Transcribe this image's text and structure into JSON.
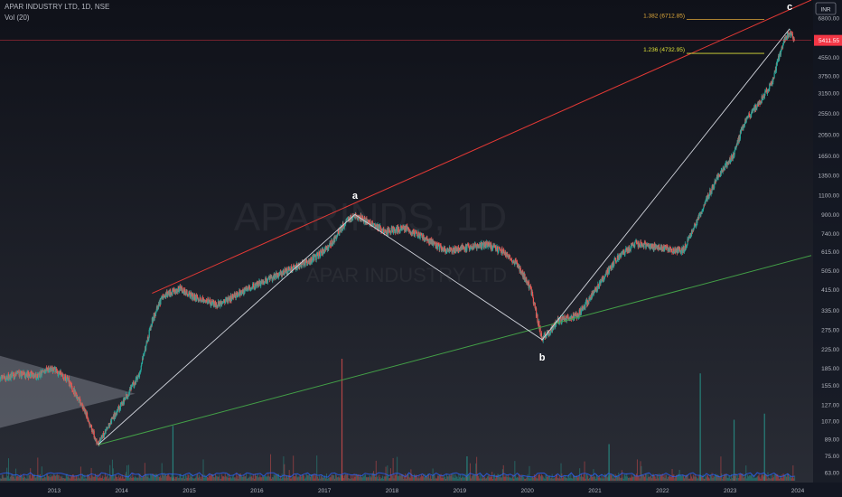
{
  "header": {
    "symbol_line": "APAR INDUSTRY LTD, 1D, NSE",
    "volume_indicator": "Vol (20)"
  },
  "watermark": {
    "ticker": "APARINDS, 1D",
    "company": "APAR INDUSTRY LTD"
  },
  "currency_badge": "INR",
  "colors": {
    "background": "#131722",
    "up_candle": "#26a69a",
    "down_candle": "#ef5350",
    "channel_upper": "#e53935",
    "channel_lower": "#43a047",
    "wave_line": "#d1d4dc",
    "fib_1382": "#e0a93a",
    "fib_1236": "#dde03a",
    "price_badge": "#f23645",
    "volume_bar": "#2962ff"
  },
  "chart_data": {
    "type": "candlestick",
    "symbol": "APARINDS",
    "exchange": "NSE",
    "interval": "1D",
    "y_scale": "log",
    "y_ticks": [
      "6800.00",
      "5411.55",
      "4550.00",
      "3750.00",
      "3150.00",
      "2550.00",
      "2050.00",
      "1650.00",
      "1350.00",
      "1100.00",
      "900.00",
      "740.00",
      "615.00",
      "505.00",
      "415.00",
      "335.00",
      "275.00",
      "225.00",
      "185.00",
      "155.00",
      "127.00",
      "107.00",
      "89.00",
      "75.00",
      "63.00"
    ],
    "x_ticks": [
      "2013",
      "2014",
      "2015",
      "2016",
      "2017",
      "2018",
      "2019",
      "2020",
      "2021",
      "2022",
      "2023",
      "2024"
    ],
    "x_range": [
      2012.2,
      2024.2
    ],
    "y_range": [
      58,
      8200
    ],
    "last_price": "5411.55",
    "price_path": [
      [
        2012.2,
        165
      ],
      [
        2012.5,
        175
      ],
      [
        2012.75,
        170
      ],
      [
        2012.95,
        185
      ],
      [
        2013.2,
        165
      ],
      [
        2013.45,
        120
      ],
      [
        2013.65,
        84
      ],
      [
        2013.85,
        108
      ],
      [
        2014.05,
        135
      ],
      [
        2014.25,
        170
      ],
      [
        2014.45,
        300
      ],
      [
        2014.6,
        385
      ],
      [
        2014.85,
        420
      ],
      [
        2015.1,
        380
      ],
      [
        2015.45,
        355
      ],
      [
        2015.8,
        410
      ],
      [
        2016.1,
        450
      ],
      [
        2016.45,
        505
      ],
      [
        2016.8,
        560
      ],
      [
        2017.05,
        640
      ],
      [
        2017.3,
        820
      ],
      [
        2017.45,
        900
      ],
      [
        2017.65,
        830
      ],
      [
        2017.9,
        760
      ],
      [
        2018.2,
        780
      ],
      [
        2018.5,
        700
      ],
      [
        2018.8,
        620
      ],
      [
        2019.1,
        640
      ],
      [
        2019.4,
        660
      ],
      [
        2019.65,
        610
      ],
      [
        2019.85,
        540
      ],
      [
        2020.05,
        420
      ],
      [
        2020.22,
        248
      ],
      [
        2020.45,
        300
      ],
      [
        2020.75,
        320
      ],
      [
        2021.0,
        410
      ],
      [
        2021.3,
        560
      ],
      [
        2021.6,
        670
      ],
      [
        2021.95,
        640
      ],
      [
        2022.3,
        620
      ],
      [
        2022.55,
        900
      ],
      [
        2022.8,
        1300
      ],
      [
        2023.05,
        1650
      ],
      [
        2023.2,
        2300
      ],
      [
        2023.45,
        2900
      ],
      [
        2023.62,
        3500
      ],
      [
        2023.72,
        4550
      ],
      [
        2023.8,
        5400
      ],
      [
        2023.88,
        5900
      ],
      [
        2023.95,
        5411.55
      ]
    ],
    "channel_upper": [
      [
        2014.45,
        400
      ],
      [
        2024.2,
        8200
      ]
    ],
    "channel_lower": [
      [
        2013.65,
        84
      ],
      [
        2024.2,
        590
      ]
    ],
    "wave_path": [
      [
        2013.65,
        84
      ],
      [
        2017.45,
        900
      ],
      [
        2020.22,
        248
      ],
      [
        2023.88,
        6100
      ]
    ],
    "wave_labels": [
      {
        "text": "a",
        "x": 2017.45,
        "y": 1060
      },
      {
        "text": "b",
        "x": 2020.22,
        "y": 200
      },
      {
        "text": "c",
        "x": 2023.88,
        "y": 7400
      }
    ],
    "fib_levels": [
      {
        "label": "1.382 (6712.85)",
        "value": 6712.85
      },
      {
        "label": "1.236 (4732.95)",
        "value": 4732.95
      }
    ],
    "triangle": [
      [
        2012.2,
        210
      ],
      [
        2014.2,
        142
      ],
      [
        2012.2,
        100
      ]
    ],
    "volume_spikes": [
      {
        "x": 2017.25,
        "v": 1.0
      },
      {
        "x": 2022.55,
        "v": 0.88
      },
      {
        "x": 2023.5,
        "v": 0.55
      },
      {
        "x": 2014.75,
        "v": 0.45
      },
      {
        "x": 2023.05,
        "v": 0.5
      },
      {
        "x": 2021.2,
        "v": 0.3
      },
      {
        "x": 2019.1,
        "v": 0.2
      }
    ]
  }
}
